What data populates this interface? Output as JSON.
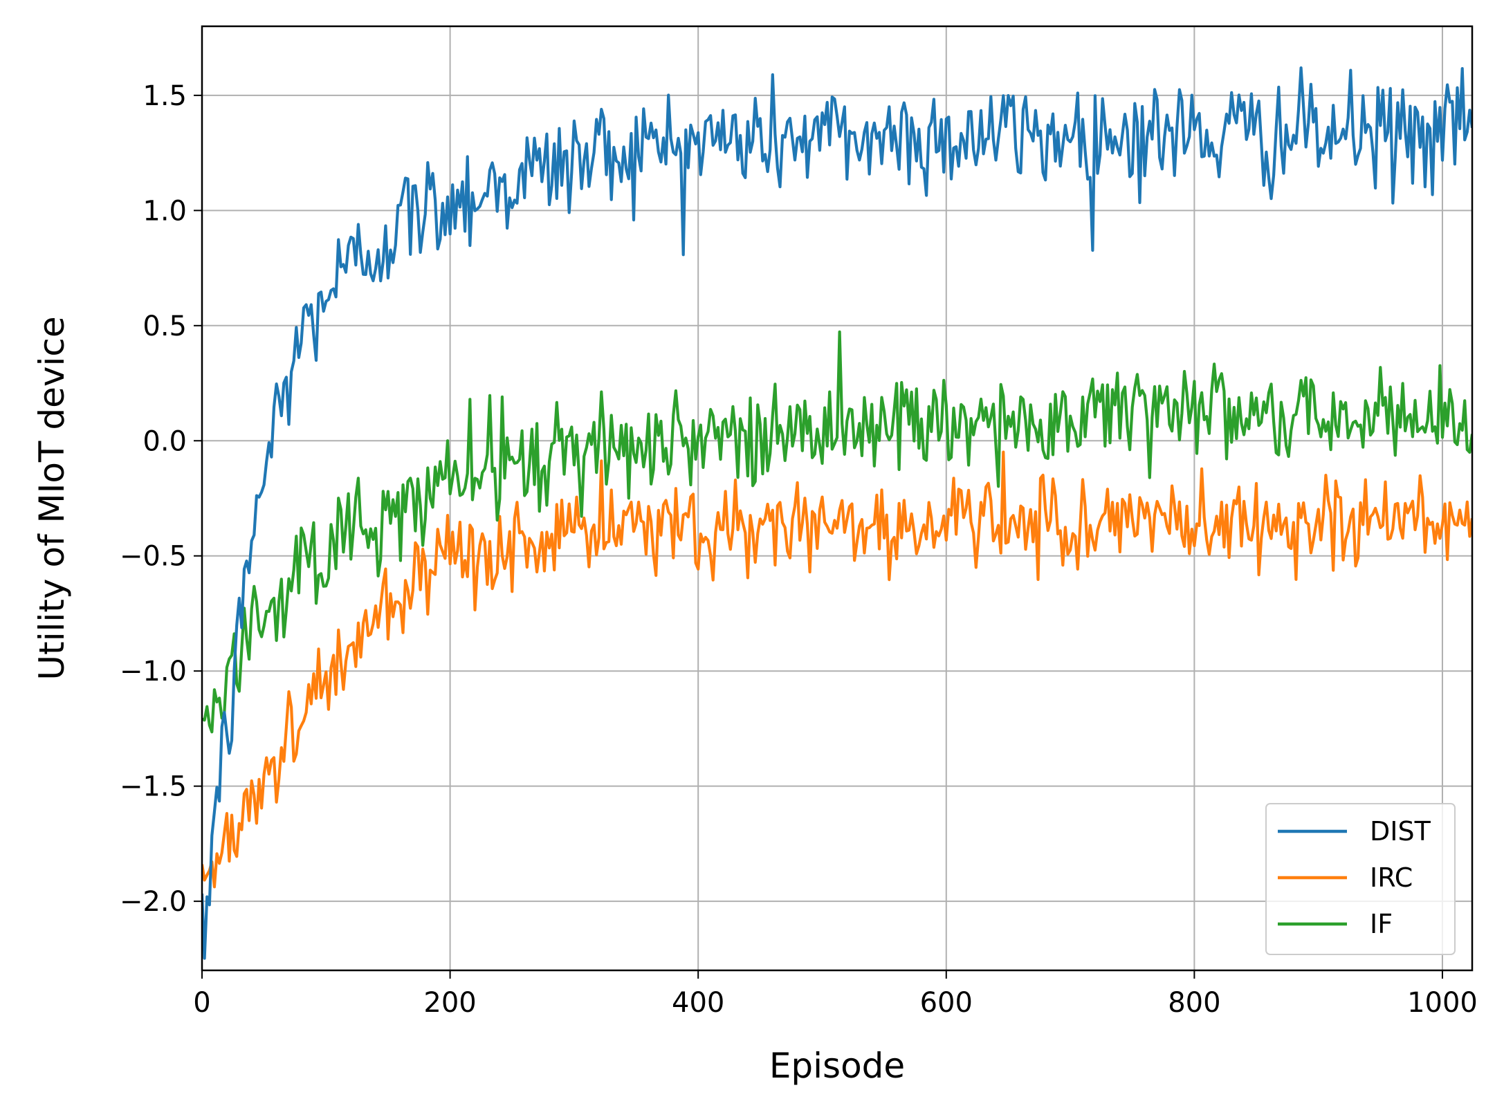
{
  "chart_data": {
    "type": "line",
    "title": "",
    "xlabel": "Episode",
    "ylabel": "Utility of MIoT device",
    "xlim": [
      0,
      1024
    ],
    "ylim": [
      -2.3,
      1.8
    ],
    "xticks": [
      0,
      200,
      400,
      600,
      800,
      1000
    ],
    "yticks": [
      -2.0,
      -1.5,
      -1.0,
      -0.5,
      0.0,
      0.5,
      1.0,
      1.5
    ],
    "ytick_labels": [
      "−2.0",
      "−1.5",
      "−1.0",
      "−0.5",
      "0.0",
      "0.5",
      "1.0",
      "1.5"
    ],
    "xtick_labels": [
      "0",
      "200",
      "400",
      "600",
      "800",
      "1000"
    ],
    "grid": true,
    "legend_position": "bottom-right",
    "x_step": 2,
    "series": [
      {
        "name": "DIST",
        "color": "#1f77b4",
        "trend_points": [
          [
            0,
            -2.3
          ],
          [
            10,
            -1.6
          ],
          [
            25,
            -1.1
          ],
          [
            40,
            -0.4
          ],
          [
            60,
            0.1
          ],
          [
            80,
            0.45
          ],
          [
            100,
            0.65
          ],
          [
            130,
            0.8
          ],
          [
            160,
            0.95
          ],
          [
            200,
            1.05
          ],
          [
            260,
            1.15
          ],
          [
            320,
            1.25
          ],
          [
            400,
            1.3
          ],
          [
            500,
            1.32
          ],
          [
            700,
            1.33
          ],
          [
            1024,
            1.33
          ]
        ],
        "noise": 0.12
      },
      {
        "name": "IRC",
        "color": "#ff7f0e",
        "trend_points": [
          [
            0,
            -1.9
          ],
          [
            20,
            -1.75
          ],
          [
            50,
            -1.45
          ],
          [
            80,
            -1.2
          ],
          [
            110,
            -0.95
          ],
          [
            150,
            -0.75
          ],
          [
            200,
            -0.55
          ],
          [
            250,
            -0.45
          ],
          [
            300,
            -0.4
          ],
          [
            400,
            -0.37
          ],
          [
            600,
            -0.36
          ],
          [
            1024,
            -0.35
          ]
        ],
        "noise": 0.1
      },
      {
        "name": "IF",
        "color": "#2ca02c",
        "trend_points": [
          [
            0,
            -1.25
          ],
          [
            20,
            -1.05
          ],
          [
            50,
            -0.75
          ],
          [
            80,
            -0.55
          ],
          [
            120,
            -0.4
          ],
          [
            160,
            -0.28
          ],
          [
            200,
            -0.18
          ],
          [
            250,
            -0.1
          ],
          [
            300,
            -0.05
          ],
          [
            400,
            0.02
          ],
          [
            500,
            0.06
          ],
          [
            600,
            0.08
          ],
          [
            700,
            0.1
          ],
          [
            800,
            0.1
          ],
          [
            1024,
            0.1
          ]
        ],
        "noise": 0.11
      }
    ]
  }
}
